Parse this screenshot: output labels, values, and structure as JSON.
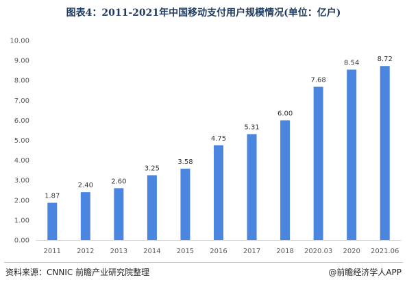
{
  "chart_data": {
    "type": "bar",
    "title": "图表4：2011-2021年中国移动支付用户规模情况(单位：亿户)",
    "categories": [
      "2011",
      "2012",
      "2013",
      "2014",
      "2015",
      "2016",
      "2017",
      "2018",
      "2020.03",
      "2020",
      "2021.06"
    ],
    "values": [
      1.87,
      2.4,
      2.6,
      3.25,
      3.58,
      4.75,
      5.31,
      6.0,
      7.68,
      8.54,
      8.72
    ],
    "data_labels": [
      "1.87",
      "2.40",
      "2.60",
      "3.25",
      "3.58",
      "4.75",
      "5.31",
      "6.00",
      "7.68",
      "8.54",
      "8.72"
    ],
    "y_ticks": [
      "0.00",
      "1.00",
      "2.00",
      "3.00",
      "4.00",
      "5.00",
      "6.00",
      "7.00",
      "8.00",
      "9.00",
      "10.00"
    ],
    "ylim": [
      0,
      10
    ],
    "grid": false,
    "bar_color": "#4a86e0"
  },
  "footer": {
    "source": "资料来源：CNNIC 前瞻产业研究院整理",
    "credit": "@前瞻经济学人APP"
  }
}
